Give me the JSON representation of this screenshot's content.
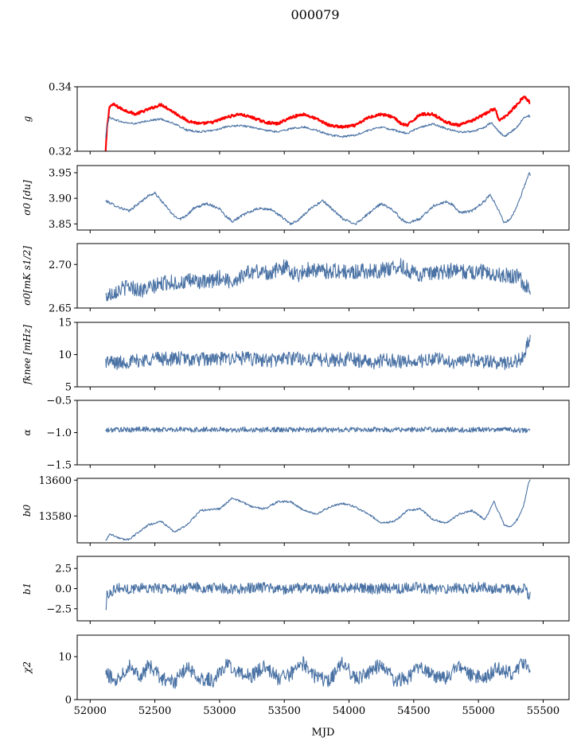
{
  "figure": {
    "title": "000079",
    "xlabel": "MJD"
  },
  "chart_data": [
    {
      "type": "line",
      "ylabel": "g",
      "xlim": [
        51900,
        55700
      ],
      "ylim": [
        0.32,
        0.34
      ],
      "yticks": [
        "0.34",
        "0.32"
      ],
      "ytick_values": [
        0.34,
        0.32
      ],
      "series": [
        {
          "color": "#ff0000",
          "lw": 2.2,
          "x": [
            52120,
            52130,
            52150,
            52180,
            52250,
            52350,
            52450,
            52550,
            52650,
            52750,
            52850,
            52950,
            53050,
            53150,
            53250,
            53350,
            53450,
            53550,
            53650,
            53750,
            53850,
            53950,
            54050,
            54150,
            54250,
            54350,
            54400,
            54450,
            54550,
            54650,
            54750,
            54850,
            54950,
            55050,
            55090,
            55110,
            55130,
            55160,
            55200,
            55250,
            55300,
            55350,
            55390,
            55400
          ],
          "y": [
            0.32,
            0.327,
            0.334,
            0.3345,
            0.333,
            0.3315,
            0.333,
            0.3345,
            0.332,
            0.3295,
            0.3285,
            0.329,
            0.3305,
            0.3315,
            0.3305,
            0.329,
            0.3285,
            0.3305,
            0.3315,
            0.33,
            0.328,
            0.3275,
            0.328,
            0.3305,
            0.3315,
            0.3305,
            0.3285,
            0.328,
            0.3315,
            0.3315,
            0.329,
            0.328,
            0.3295,
            0.3315,
            0.3325,
            0.333,
            0.333,
            0.3295,
            0.3305,
            0.3325,
            0.3345,
            0.337,
            0.3355,
            0.3345
          ]
        },
        {
          "color": "#4a72a4",
          "lw": 1.1,
          "x": [
            52120,
            52130,
            52150,
            52180,
            52250,
            52350,
            52450,
            52550,
            52650,
            52750,
            52850,
            52950,
            53050,
            53150,
            53250,
            53350,
            53450,
            53550,
            53650,
            53750,
            53850,
            53950,
            54050,
            54150,
            54250,
            54350,
            54450,
            54550,
            54650,
            54750,
            54850,
            54950,
            55050,
            55100,
            55150,
            55200,
            55250,
            55300,
            55350,
            55390,
            55400
          ],
          "y": [
            0.324,
            0.328,
            0.3305,
            0.33,
            0.329,
            0.3285,
            0.3295,
            0.33,
            0.3285,
            0.3265,
            0.326,
            0.3265,
            0.3275,
            0.328,
            0.3275,
            0.3265,
            0.326,
            0.327,
            0.3275,
            0.3265,
            0.325,
            0.3245,
            0.325,
            0.3265,
            0.3275,
            0.3265,
            0.3255,
            0.3275,
            0.3285,
            0.327,
            0.326,
            0.326,
            0.3275,
            0.329,
            0.3265,
            0.3245,
            0.326,
            0.3275,
            0.3305,
            0.331,
            0.3305
          ]
        }
      ]
    },
    {
      "type": "line",
      "ylabel": "σ0 [du]",
      "xlim": [
        51900,
        55700
      ],
      "ylim": [
        3.838,
        3.964
      ],
      "yticks": [
        "3.95",
        "3.90",
        "3.85"
      ],
      "ytick_values": [
        3.95,
        3.9,
        3.85
      ],
      "series": [
        {
          "color": "#4a72a4",
          "x": [
            52120,
            52200,
            52300,
            52400,
            52450,
            52500,
            52550,
            52650,
            52700,
            52750,
            52800,
            52900,
            53000,
            53050,
            53100,
            53200,
            53300,
            53400,
            53500,
            53550,
            53600,
            53700,
            53800,
            53900,
            53950,
            54000,
            54050,
            54150,
            54250,
            54350,
            54400,
            54450,
            54550,
            54650,
            54750,
            54800,
            54850,
            54950,
            55050,
            55090,
            55150,
            55200,
            55250,
            55300,
            55350,
            55390,
            55400
          ],
          "y": [
            3.895,
            3.885,
            3.875,
            3.895,
            3.905,
            3.91,
            3.895,
            3.865,
            3.86,
            3.868,
            3.88,
            3.89,
            3.88,
            3.865,
            3.855,
            3.87,
            3.88,
            3.878,
            3.86,
            3.85,
            3.855,
            3.88,
            3.895,
            3.872,
            3.86,
            3.855,
            3.85,
            3.87,
            3.89,
            3.875,
            3.86,
            3.852,
            3.86,
            3.885,
            3.893,
            3.888,
            3.872,
            3.875,
            3.895,
            3.908,
            3.88,
            3.852,
            3.86,
            3.885,
            3.92,
            3.95,
            3.945
          ]
        }
      ]
    },
    {
      "type": "line",
      "ylabel": "σ0[mK s1/2]",
      "xlim": [
        51900,
        55700
      ],
      "ylim": [
        2.65,
        2.724
      ],
      "yticks": [
        "2.70",
        "2.65"
      ],
      "ytick_values": [
        2.7,
        2.65
      ],
      "series": [
        {
          "color": "#4a72a4",
          "x": [
            52120,
            52200,
            52300,
            52400,
            52500,
            52600,
            52700,
            52800,
            52900,
            53000,
            53100,
            53200,
            53300,
            53400,
            53500,
            53600,
            53700,
            53800,
            53900,
            54000,
            54100,
            54200,
            54300,
            54400,
            54500,
            54600,
            54700,
            54800,
            54900,
            55000,
            55100,
            55200,
            55300,
            55400
          ],
          "y": [
            2.663,
            2.67,
            2.675,
            2.67,
            2.675,
            2.68,
            2.678,
            2.682,
            2.678,
            2.685,
            2.68,
            2.69,
            2.692,
            2.69,
            2.698,
            2.688,
            2.695,
            2.692,
            2.693,
            2.69,
            2.693,
            2.692,
            2.695,
            2.698,
            2.69,
            2.688,
            2.69,
            2.693,
            2.691,
            2.692,
            2.69,
            2.688,
            2.686,
            2.671
          ]
        }
      ]
    },
    {
      "type": "line",
      "ylabel": "fknee [mHz]",
      "xlim": [
        51900,
        55700
      ],
      "ylim": [
        5,
        15
      ],
      "yticks": [
        "15",
        "10",
        "5"
      ],
      "ytick_values": [
        15,
        10,
        5
      ],
      "series": [
        {
          "color": "#4a72a4",
          "x": [
            52120,
            52200,
            52300,
            52400,
            52500,
            52600,
            52700,
            52800,
            52900,
            53000,
            53100,
            53200,
            53300,
            53400,
            53500,
            53600,
            53700,
            53800,
            53900,
            54000,
            54100,
            54200,
            54300,
            54400,
            54500,
            54600,
            54700,
            54800,
            54900,
            55000,
            55100,
            55200,
            55300,
            55350,
            55380,
            55400
          ],
          "y": [
            9.0,
            8.7,
            8.9,
            9.1,
            9.5,
            9.3,
            9.4,
            9.2,
            9.3,
            9.3,
            9.5,
            9.4,
            9.2,
            9.1,
            9.4,
            9.5,
            9.2,
            9.3,
            9.1,
            9.4,
            9.0,
            8.8,
            9.2,
            9.0,
            8.8,
            9.1,
            9.3,
            8.9,
            9.0,
            9.1,
            8.8,
            8.6,
            9.0,
            10.0,
            12.0,
            12.2
          ]
        }
      ]
    },
    {
      "type": "line",
      "ylabel": "α",
      "xlim": [
        51900,
        55700
      ],
      "ylim": [
        -1.5,
        -0.5
      ],
      "yticks": [
        "−0.5",
        "−1.0",
        "−1.5"
      ],
      "ytick_values": [
        -0.5,
        -1.0,
        -1.5
      ],
      "series": [
        {
          "color": "#4a72a4",
          "x": [
            52120,
            52200,
            52300,
            52400,
            52500,
            52600,
            52700,
            52800,
            52900,
            53000,
            53100,
            53200,
            53300,
            53400,
            53500,
            53600,
            53700,
            53800,
            53900,
            54000,
            54100,
            54200,
            54300,
            54400,
            54500,
            54600,
            54700,
            54800,
            54900,
            55000,
            55100,
            55200,
            55300,
            55400
          ],
          "y": [
            -0.97,
            -0.95,
            -0.96,
            -0.94,
            -0.96,
            -0.95,
            -0.95,
            -0.96,
            -0.95,
            -0.95,
            -0.96,
            -0.95,
            -0.96,
            -0.95,
            -0.96,
            -0.95,
            -0.96,
            -0.95,
            -0.96,
            -0.95,
            -0.96,
            -0.95,
            -0.96,
            -0.95,
            -0.96,
            -0.95,
            -0.96,
            -0.95,
            -0.96,
            -0.95,
            -0.96,
            -0.95,
            -0.96,
            -0.98
          ]
        }
      ]
    },
    {
      "type": "line",
      "ylabel": "b0",
      "xlim": [
        51900,
        55700
      ],
      "ylim": [
        13565,
        13601
      ],
      "yticks": [
        "13600",
        "13580"
      ],
      "ytick_values": [
        13600,
        13580
      ],
      "series": [
        {
          "color": "#4a72a4",
          "x": [
            52120,
            52150,
            52250,
            52300,
            52450,
            52550,
            52650,
            52750,
            52850,
            53000,
            53100,
            53200,
            53250,
            53350,
            53450,
            53550,
            53650,
            53750,
            53850,
            53950,
            54050,
            54150,
            54250,
            54350,
            54450,
            54550,
            54650,
            54750,
            54850,
            54950,
            55050,
            55100,
            55120,
            55200,
            55250,
            55300,
            55350,
            55390,
            55400
          ],
          "y": [
            13566,
            13570,
            13567,
            13567,
            13575,
            13577,
            13571,
            13575,
            13583,
            13584,
            13590,
            13587,
            13585,
            13584,
            13588,
            13588,
            13583,
            13581,
            13585,
            13587,
            13585,
            13581,
            13576,
            13577,
            13583,
            13584,
            13578,
            13576,
            13581,
            13583,
            13578,
            13585,
            13588,
            13575,
            13574,
            13578,
            13586,
            13599,
            13600
          ]
        }
      ]
    },
    {
      "type": "line",
      "ylabel": "b1",
      "xlim": [
        51900,
        55700
      ],
      "ylim": [
        -4.0,
        4.0
      ],
      "yticks": [
        "2.5",
        "0.0",
        "−2.5"
      ],
      "ytick_values": [
        2.5,
        0.0,
        -2.5
      ],
      "series": [
        {
          "color": "#4a72a4",
          "x": [
            52120,
            52130,
            52200,
            52300,
            52400,
            52500,
            52600,
            52700,
            52800,
            52900,
            53000,
            53100,
            53200,
            53300,
            53400,
            53500,
            53600,
            53700,
            53800,
            53900,
            54000,
            54100,
            54200,
            54300,
            54400,
            54500,
            54600,
            54700,
            54800,
            54900,
            55000,
            55100,
            55200,
            55300,
            55350,
            55400
          ],
          "y": [
            -2.8,
            -0.8,
            0.1,
            -0.1,
            0.2,
            0.0,
            0.1,
            -0.1,
            0.2,
            0.0,
            0.1,
            -0.1,
            0.0,
            0.2,
            0.0,
            -0.1,
            0.1,
            0.0,
            -0.1,
            0.1,
            0.0,
            0.1,
            -0.1,
            0.1,
            0.0,
            0.2,
            0.0,
            -0.1,
            0.1,
            0.0,
            0.2,
            0.0,
            0.1,
            -0.2,
            0.0,
            -1.0
          ]
        }
      ]
    },
    {
      "type": "line",
      "ylabel": "χ2",
      "xlim": [
        51900,
        55700
      ],
      "ylim": [
        0,
        15
      ],
      "yticks": [
        "10",
        "0"
      ],
      "ytick_values": [
        10,
        0
      ],
      "series": [
        {
          "color": "#4a72a4",
          "x": [
            52120,
            52200,
            52300,
            52400,
            52450,
            52550,
            52650,
            52750,
            52850,
            52950,
            53050,
            53150,
            53250,
            53350,
            53450,
            53550,
            53650,
            53750,
            53850,
            53950,
            54050,
            54150,
            54250,
            54350,
            54450,
            54550,
            54650,
            54750,
            54850,
            54950,
            55050,
            55150,
            55250,
            55350,
            55400
          ],
          "y": [
            6.0,
            4.5,
            8.0,
            5.5,
            8.0,
            5.0,
            4.0,
            7.5,
            5.0,
            4.5,
            8.0,
            6.5,
            5.5,
            8.0,
            5.0,
            6.0,
            8.5,
            5.0,
            4.5,
            8.5,
            5.0,
            6.0,
            8.5,
            4.5,
            5.0,
            8.0,
            5.5,
            5.0,
            8.0,
            5.5,
            5.0,
            7.5,
            6.0,
            8.5,
            7.0
          ]
        }
      ]
    }
  ],
  "xaxis": {
    "ticks": [
      "52000",
      "52500",
      "53000",
      "53500",
      "54000",
      "54500",
      "55000",
      "55500"
    ],
    "tick_values": [
      52000,
      52500,
      53000,
      53500,
      54000,
      54500,
      55000,
      55500
    ]
  }
}
